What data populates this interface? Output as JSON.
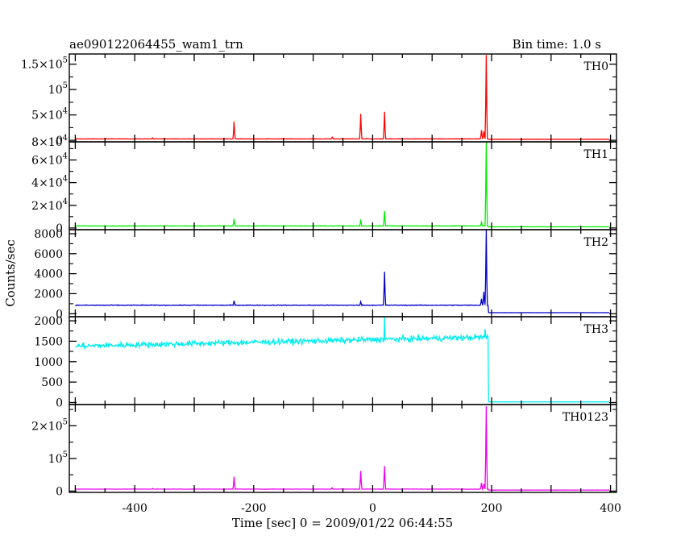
{
  "header": {
    "title": "ae090122064455_wam1_trn",
    "bin_time": "Bin time: 1.0 s"
  },
  "chart_data": {
    "type": "line",
    "xlabel": "Time [sec] 0 = 2009/01/22 06:44:55",
    "ylabel": "Counts/sec",
    "xlim": [
      -510,
      410
    ],
    "x_ticks": [
      -400,
      -200,
      0,
      200,
      400
    ],
    "bin_time_s": 1.0,
    "panels": [
      {
        "name": "TH0",
        "color": "#ff0000",
        "ylim": [
          -3000,
          170000
        ],
        "ticks": [
          {
            "v": 0,
            "base": "0"
          },
          {
            "v": 50000,
            "base": "5×10",
            "exp": "4"
          },
          {
            "v": 100000,
            "base": "10",
            "exp": "5"
          },
          {
            "v": 150000,
            "base": "1.5×10",
            "exp": "5"
          }
        ],
        "baseline": 2800,
        "noise": 500,
        "spikes": [
          [
            -370,
            5000
          ],
          [
            -233,
            37000
          ],
          [
            -68,
            6000
          ],
          [
            -20,
            52000
          ],
          [
            -10,
            4000
          ],
          [
            20,
            56000
          ],
          [
            50,
            4000
          ],
          [
            183,
            20000
          ],
          [
            187,
            18000
          ],
          [
            191,
            168000
          ]
        ],
        "post_level": 2000
      },
      {
        "name": "TH1",
        "color": "#00ee00",
        "ylim": [
          -1500,
          76000
        ],
        "ticks": [
          {
            "v": 0,
            "base": "0"
          },
          {
            "v": 20000,
            "base": "2×10",
            "exp": "4"
          },
          {
            "v": 40000,
            "base": "4×10",
            "exp": "4"
          },
          {
            "v": 60000,
            "base": "6×10",
            "exp": "4"
          },
          {
            "v": 80000,
            "base": "8×10",
            "exp": "4"
          }
        ],
        "baseline": 1800,
        "noise": 300,
        "spikes": [
          [
            -233,
            8000
          ],
          [
            -20,
            7500
          ],
          [
            20,
            15000
          ],
          [
            183,
            5000
          ],
          [
            191,
            76000
          ]
        ],
        "post_level": 1000
      },
      {
        "name": "TH2",
        "color": "#0000cc",
        "ylim": [
          -300,
          8400
        ],
        "ticks": [
          {
            "v": 0,
            "base": "0"
          },
          {
            "v": 2000,
            "base": "2000"
          },
          {
            "v": 4000,
            "base": "4000"
          },
          {
            "v": 6000,
            "base": "6000"
          },
          {
            "v": 8000,
            "base": "8000"
          }
        ],
        "baseline": 850,
        "noise": 60,
        "spikes": [
          [
            -233,
            1300
          ],
          [
            -20,
            1200
          ],
          [
            20,
            4200
          ],
          [
            183,
            1500
          ],
          [
            187,
            2200
          ],
          [
            191,
            8400
          ]
        ],
        "post_level": 100
      },
      {
        "name": "TH3",
        "color": "#00eeee",
        "ylim": [
          -50,
          2100
        ],
        "ticks": [
          {
            "v": 0,
            "base": "0"
          },
          {
            "v": 500,
            "base": "500"
          },
          {
            "v": 1000,
            "base": "1000"
          },
          {
            "v": 1500,
            "base": "1500"
          },
          {
            "v": 2000,
            "base": "2000"
          }
        ],
        "baseline_start": 1380,
        "baseline_end": 1600,
        "noise": 100,
        "spikes": [
          [
            20,
            2100
          ],
          [
            189,
            1800
          ]
        ],
        "post_level": 15
      },
      {
        "name": "TH0123",
        "color": "#ee00ee",
        "ylim": [
          -4000,
          265000
        ],
        "ticks": [
          {
            "v": 0,
            "base": "0"
          },
          {
            "v": 100000,
            "base": "10",
            "exp": "5"
          },
          {
            "v": 200000,
            "base": "2×10",
            "exp": "5"
          }
        ],
        "baseline": 6000,
        "noise": 800,
        "spikes": [
          [
            -370,
            8000
          ],
          [
            -233,
            44000
          ],
          [
            -68,
            10000
          ],
          [
            -20,
            62000
          ],
          [
            20,
            77000
          ],
          [
            183,
            25000
          ],
          [
            187,
            22000
          ],
          [
            191,
            260000
          ]
        ],
        "post_level": 3000
      }
    ]
  }
}
